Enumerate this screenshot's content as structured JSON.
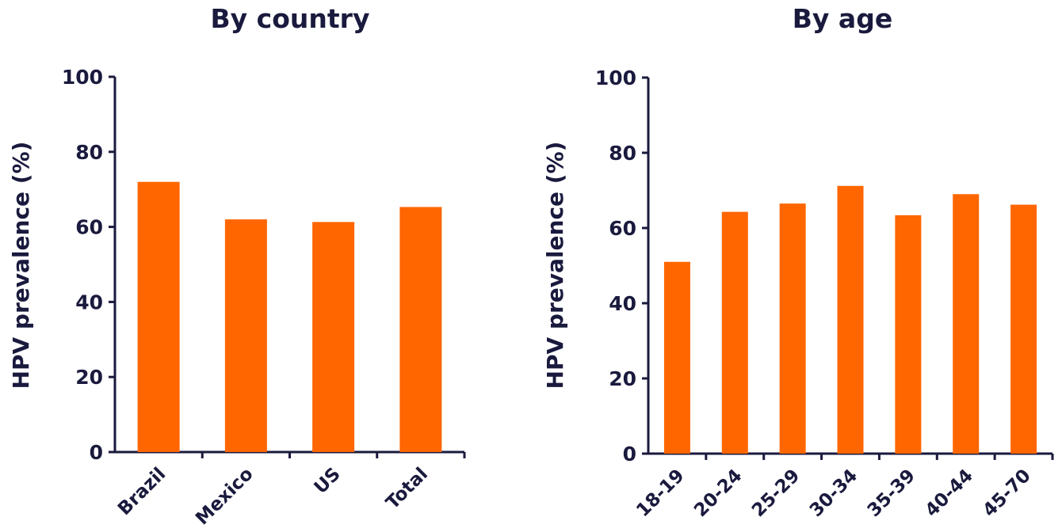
{
  "colors": {
    "bar": "#ff6600",
    "axis": "#1a1a3e"
  },
  "chart_data": [
    {
      "type": "bar",
      "title": "By country",
      "ylabel": "HPV prevalence (%)",
      "xlabel": "",
      "ylim": [
        0,
        100
      ],
      "yticks": [
        0,
        20,
        40,
        60,
        80,
        100
      ],
      "categories": [
        "Brazil",
        "Mexico",
        "US",
        "Total"
      ],
      "values": [
        72,
        62,
        61.3,
        65.3
      ]
    },
    {
      "type": "bar",
      "title": "By age",
      "ylabel": "HPV prevalence (%)",
      "xlabel": "",
      "ylim": [
        0,
        100
      ],
      "yticks": [
        0,
        20,
        40,
        60,
        80,
        100
      ],
      "categories": [
        "18-19",
        "20-24",
        "25-29",
        "30-34",
        "35-39",
        "40-44",
        "45-70"
      ],
      "values": [
        51,
        64.3,
        66.5,
        71.2,
        63.4,
        69,
        66.2
      ]
    }
  ]
}
